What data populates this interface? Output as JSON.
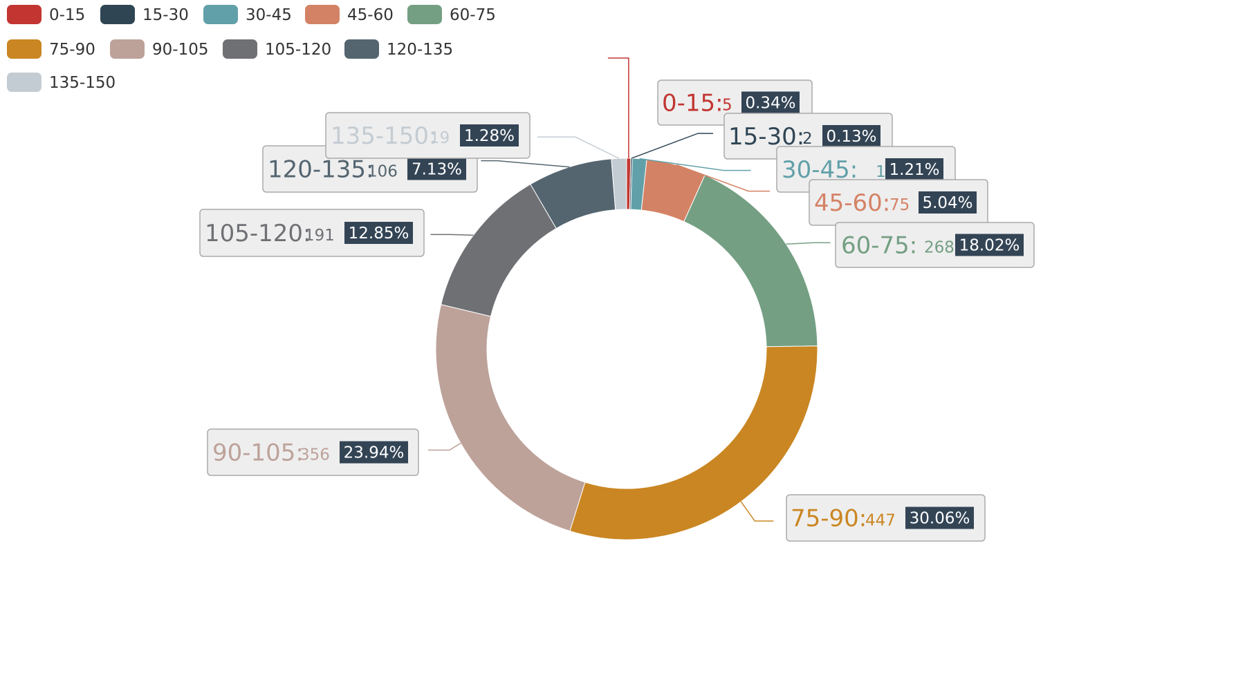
{
  "chart_data": {
    "type": "pie",
    "variant": "donut",
    "legend_position": "top-left",
    "categories": [
      "0-15",
      "15-30",
      "30-45",
      "45-60",
      "60-75",
      "75-90",
      "90-105",
      "105-120",
      "120-135",
      "135-150"
    ],
    "values": [
      5,
      2,
      18,
      75,
      268,
      447,
      356,
      191,
      106,
      19
    ],
    "percent_labels": [
      "0.34%",
      "0.13%",
      "1.21%",
      "5.04%",
      "18.02%",
      "30.06%",
      "23.94%",
      "12.85%",
      "7.13%",
      "1.28%"
    ],
    "colors": [
      "#c23531",
      "#2f4554",
      "#61a0a8",
      "#d48265",
      "#749f83",
      "#ca8622",
      "#bda29a",
      "#6e7074",
      "#546570",
      "#c4ccd3"
    ],
    "label_colors": [
      "#c23531",
      "#2f4554",
      "#61a0a8",
      "#d48265",
      "#749f83",
      "#ca8622",
      "#bda29a",
      "#6e7074",
      "#546570",
      "#c4ccd3"
    ],
    "badge_color": "#334455"
  }
}
